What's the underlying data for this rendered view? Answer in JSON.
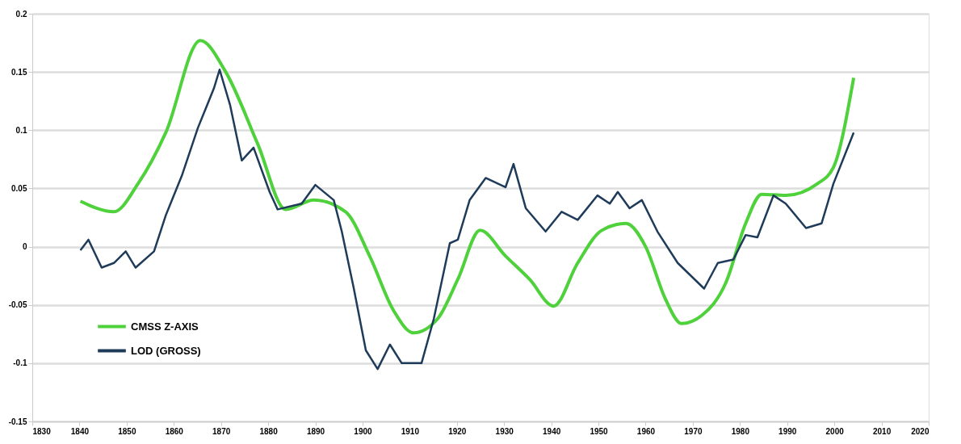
{
  "chart_data": {
    "type": "line",
    "xlim": [
      1830,
      2020
    ],
    "xticks": [
      1830,
      1840,
      1850,
      1860,
      1870,
      1880,
      1890,
      1900,
      1910,
      1920,
      1930,
      1940,
      1950,
      1960,
      1970,
      1980,
      1990,
      2000,
      2010,
      2020
    ],
    "ylim": [
      -0.15,
      0.2
    ],
    "yticks": [
      -0.15,
      -0.1,
      -0.05,
      0,
      0.05,
      0.1,
      0.15,
      0.2
    ],
    "grid": "y",
    "legend": "bottom left",
    "series": [
      {
        "name": "CMSS Z-AXIS",
        "color": "#4fd13c",
        "x": [
          1840.2,
          1847.3,
          1852.4,
          1858.3,
          1865.6,
          1871,
          1877.8,
          1883.7,
          1889.7,
          1896.4,
          1901.5,
          1906.6,
          1910.8,
          1915.9,
          1920.2,
          1924.9,
          1930.3,
          1935.4,
          1940.5,
          1945.6,
          1950.7,
          1955.8,
          1960,
          1964.2,
          1967.6,
          1971.9,
          1977,
          1981.2,
          1984.6,
          1989.7,
          1996.4,
          1999.8,
          2004.1
        ],
        "values": [
          0.039,
          0.03,
          0.054,
          0.098,
          0.177,
          0.15,
          0.088,
          0.032,
          0.04,
          0.03,
          -0.008,
          -0.055,
          -0.074,
          -0.062,
          -0.028,
          0.014,
          -0.008,
          -0.028,
          -0.051,
          -0.014,
          0.014,
          0.02,
          0,
          -0.045,
          -0.066,
          -0.059,
          -0.031,
          0.02,
          0.045,
          0.044,
          0.054,
          0.068,
          0.145
        ]
      },
      {
        "name": "LOD (GROSS)",
        "color": "#1f3b5a",
        "x": [
          1840.2,
          1841.9,
          1844.7,
          1847.3,
          1849.8,
          1851.9,
          1855.8,
          1858.3,
          1861.7,
          1865.1,
          1868.5,
          1869.7,
          1871.9,
          1874.4,
          1876.9,
          1880.3,
          1882,
          1887.1,
          1890,
          1893.9,
          1895.6,
          1898.1,
          1900.7,
          1903.2,
          1905.8,
          1908.3,
          1912.5,
          1915.1,
          1918.5,
          1920.2,
          1922.7,
          1926.1,
          1930.3,
          1932,
          1934.6,
          1938.8,
          1942.2,
          1945.6,
          1949.8,
          1952.4,
          1954.1,
          1956.6,
          1959.2,
          1962.5,
          1966.8,
          1972.4,
          1975.3,
          1978.6,
          1981.2,
          1983.7,
          1987.1,
          1989.7,
          1994,
          1997.3,
          1999.8,
          2004.1
        ],
        "values": [
          -0.003,
          0.006,
          -0.018,
          -0.014,
          -0.004,
          -0.018,
          -0.004,
          0.027,
          0.061,
          0.102,
          0.136,
          0.152,
          0.122,
          0.074,
          0.085,
          0.047,
          0.032,
          0.037,
          0.053,
          0.04,
          0.013,
          -0.035,
          -0.089,
          -0.105,
          -0.084,
          -0.1,
          -0.1,
          -0.062,
          0.003,
          0.006,
          0.04,
          0.059,
          0.051,
          0.071,
          0.033,
          0.013,
          0.03,
          0.023,
          0.044,
          0.037,
          0.047,
          0.033,
          0.04,
          0.013,
          -0.014,
          -0.036,
          -0.014,
          -0.011,
          0.01,
          0.008,
          0.044,
          0.037,
          0.016,
          0.02,
          0.054,
          0.098
        ]
      }
    ]
  }
}
